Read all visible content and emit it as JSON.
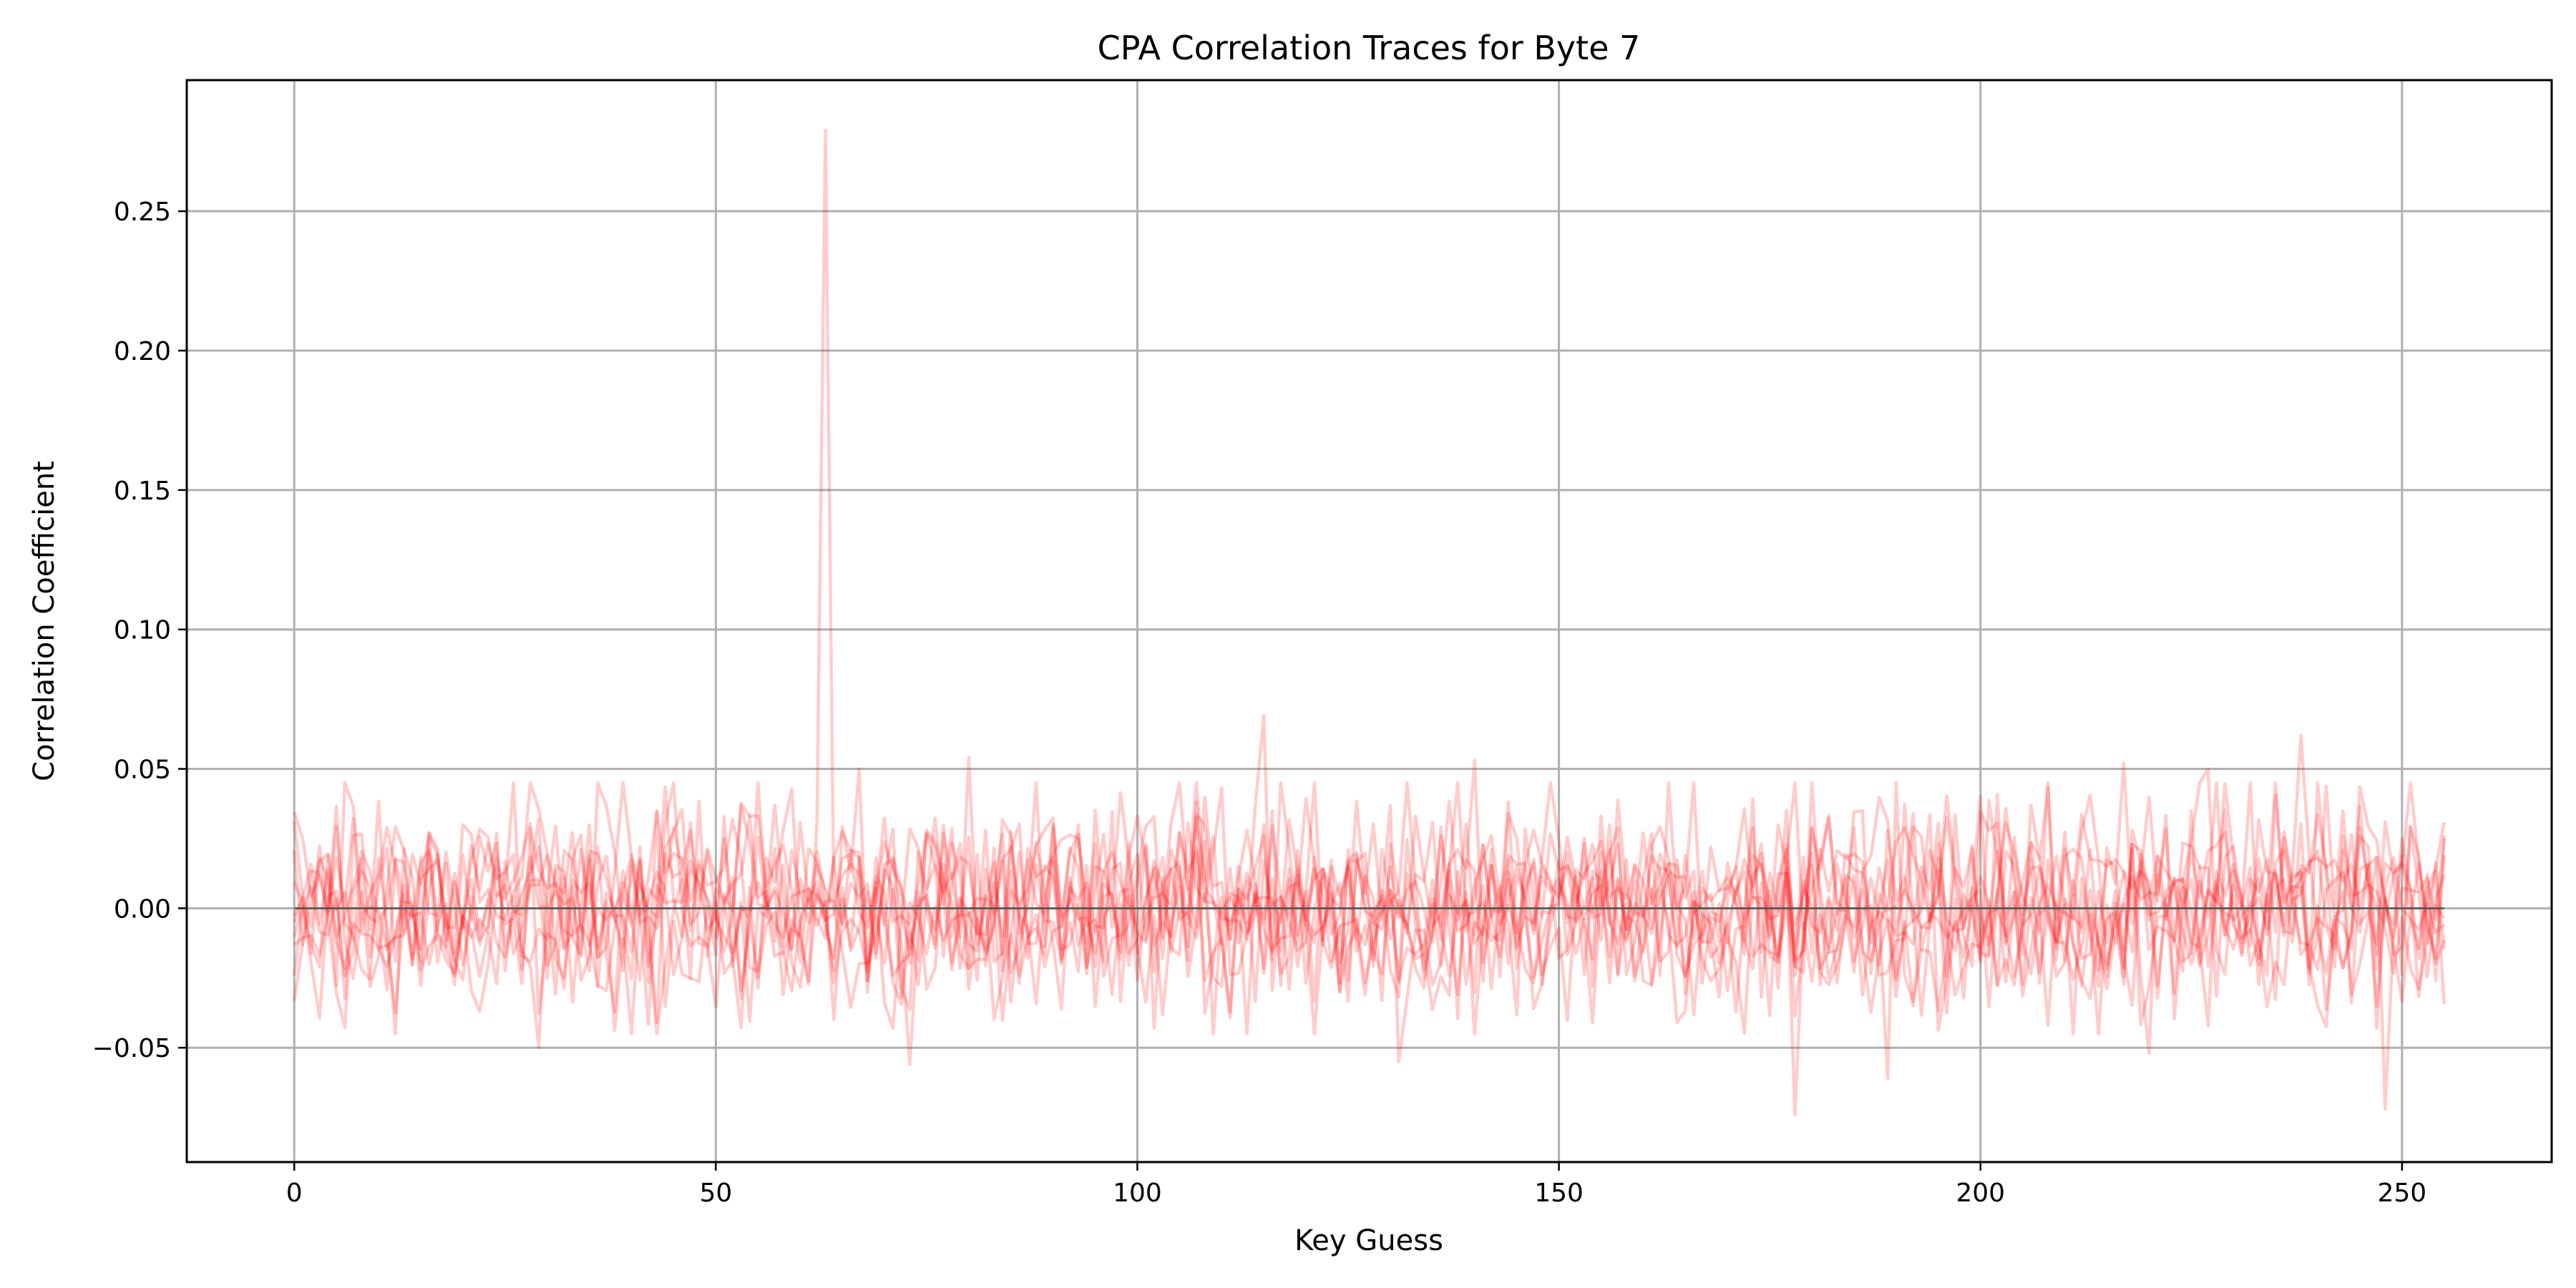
{
  "chart_data": {
    "type": "line",
    "title": "CPA Correlation Traces for Byte 7",
    "xlabel": "Key Guess",
    "ylabel": "Correlation Coefficient",
    "xlim": [
      -12.75,
      267.75
    ],
    "ylim": [
      -0.091,
      0.297
    ],
    "xticks": [
      0,
      50,
      100,
      150,
      200,
      250
    ],
    "yticks": [
      -0.05,
      0.0,
      0.05,
      0.1,
      0.15,
      0.2,
      0.25
    ],
    "ytick_labels": [
      "−0.05",
      "0.00",
      "0.05",
      "0.10",
      "0.15",
      "0.20",
      "0.25"
    ],
    "grid": true,
    "line_color": "#ff0000",
    "line_opacity": 0.2,
    "reference_line": {
      "y": 0.0,
      "color": "#555555"
    },
    "key_guess_range": [
      0,
      255
    ],
    "num_traces": 10,
    "noise_level": 0.018,
    "peak": {
      "x": 63,
      "y": 0.279
    },
    "notable_extremes": [
      {
        "x": 115,
        "y": 0.069
      },
      {
        "x": 238,
        "y": 0.062
      },
      {
        "x": 80,
        "y": 0.054
      },
      {
        "x": 140,
        "y": 0.053
      },
      {
        "x": 217,
        "y": 0.052
      },
      {
        "x": 67,
        "y": 0.05
      },
      {
        "x": 227,
        "y": 0.05
      },
      {
        "x": 178,
        "y": -0.074
      },
      {
        "x": 248,
        "y": -0.072
      },
      {
        "x": 189,
        "y": -0.061
      },
      {
        "x": 73,
        "y": -0.056
      },
      {
        "x": 131,
        "y": -0.055
      },
      {
        "x": 220,
        "y": -0.052
      },
      {
        "x": 29,
        "y": -0.05
      }
    ]
  }
}
